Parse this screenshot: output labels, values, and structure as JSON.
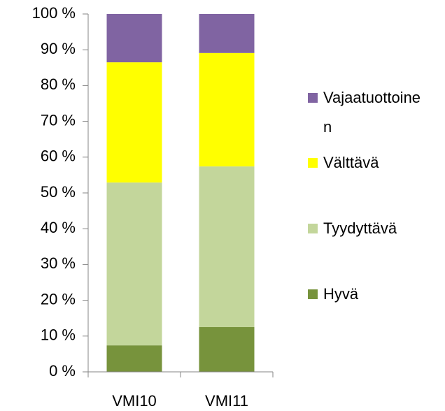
{
  "chart_data": {
    "type": "stacked_bar",
    "categories": [
      "VMI10",
      "VMI11"
    ],
    "series": [
      {
        "name": "Hyvä",
        "color": "#77933c",
        "values": [
          7.4,
          12.5
        ]
      },
      {
        "name": "Tyydyttävä",
        "color": "#c3d69b",
        "values": [
          45.5,
          44.9
        ]
      },
      {
        "name": "Välttävä",
        "color": "#ffff00",
        "values": [
          33.6,
          31.7
        ]
      },
      {
        "name": "Vajaatuottoinen",
        "color": "#8064a2",
        "values": [
          13.5,
          10.9
        ]
      }
    ],
    "ylim": [
      0,
      100
    ],
    "yticks": [
      {
        "value": 0,
        "label": "0 %"
      },
      {
        "value": 10,
        "label": "10 %"
      },
      {
        "value": 20,
        "label": "20 %"
      },
      {
        "value": 30,
        "label": "30 %"
      },
      {
        "value": 40,
        "label": "40 %"
      },
      {
        "value": 50,
        "label": "50 %"
      },
      {
        "value": 60,
        "label": "60 %"
      },
      {
        "value": 70,
        "label": "70 %"
      },
      {
        "value": 80,
        "label": "80 %"
      },
      {
        "value": 90,
        "label": "90 %"
      },
      {
        "value": 100,
        "label": "100 %"
      }
    ],
    "legend": "right"
  }
}
